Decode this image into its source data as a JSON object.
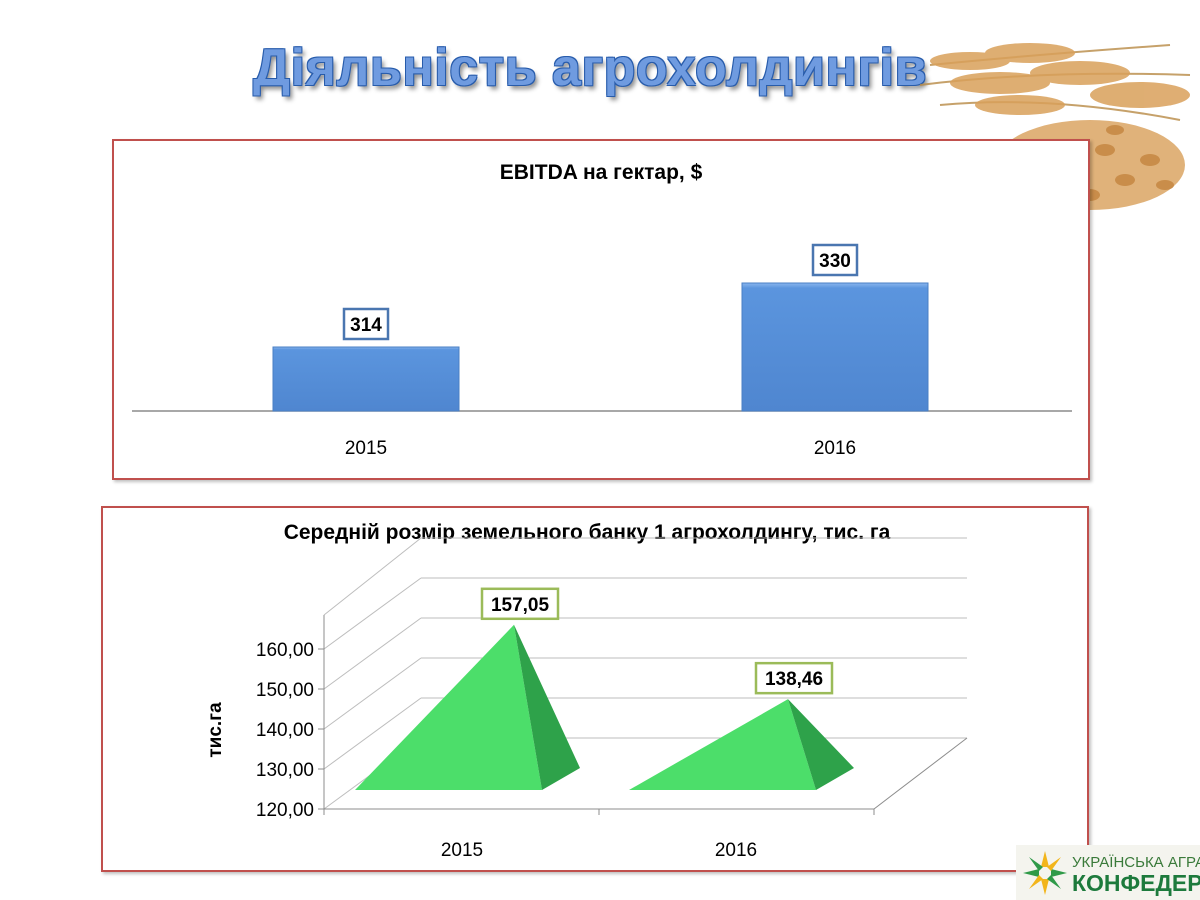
{
  "slide": {
    "title": "Діяльність агрохолдингів"
  },
  "logo": {
    "line1": "УКРАЇНСЬКА АГРАР",
    "line2": "КОНФЕДЕРАЦ"
  },
  "chart_data": [
    {
      "type": "bar",
      "title": "EBITDA на гектар, $",
      "categories": [
        "2015",
        "2016"
      ],
      "values": [
        314,
        330
      ],
      "data_labels": [
        "314",
        "330"
      ],
      "ylim": [
        284,
        345
      ],
      "grid": false,
      "legend": "none",
      "bar_color": "#5b95de"
    },
    {
      "type": "bar",
      "subtype": "3d-pyramid",
      "title": "Середній розмір земельного банку 1  агрохолдингу, тис. га",
      "ylabel": "тис.га",
      "categories": [
        "2015",
        "2016"
      ],
      "values": [
        157.05,
        138.46
      ],
      "data_labels": [
        "157,05",
        "138,46"
      ],
      "yticks": [
        "120,00",
        "130,00",
        "140,00",
        "150,00",
        "160,00"
      ],
      "ylim": [
        120,
        160
      ],
      "grid": true,
      "legend": "none",
      "color": "#4cde6a"
    }
  ]
}
